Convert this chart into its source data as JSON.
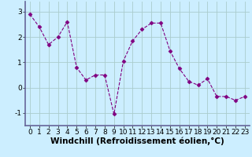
{
  "x": [
    0,
    1,
    2,
    3,
    4,
    5,
    6,
    7,
    8,
    9,
    10,
    11,
    12,
    13,
    14,
    15,
    16,
    17,
    18,
    19,
    20,
    21,
    22,
    23
  ],
  "y": [
    2.9,
    2.4,
    1.7,
    2.0,
    2.6,
    0.8,
    0.3,
    0.5,
    0.5,
    -1.05,
    1.05,
    1.85,
    2.3,
    2.55,
    2.55,
    1.45,
    0.75,
    0.25,
    0.1,
    0.35,
    -0.35,
    -0.35,
    -0.5,
    -0.35
  ],
  "line_color": "#800080",
  "marker": "D",
  "marker_size": 2.5,
  "bg_color": "#cceeff",
  "grid_color": "#aacccc",
  "xlabel": "Windchill (Refroidissement éolien,°C)",
  "xlabel_fontsize": 7.5,
  "tick_fontsize": 6.5,
  "ylim": [
    -1.5,
    3.4
  ],
  "yticks": [
    -1,
    0,
    1,
    2,
    3
  ],
  "xlim": [
    -0.5,
    23.5
  ],
  "spine_color": "#666699"
}
